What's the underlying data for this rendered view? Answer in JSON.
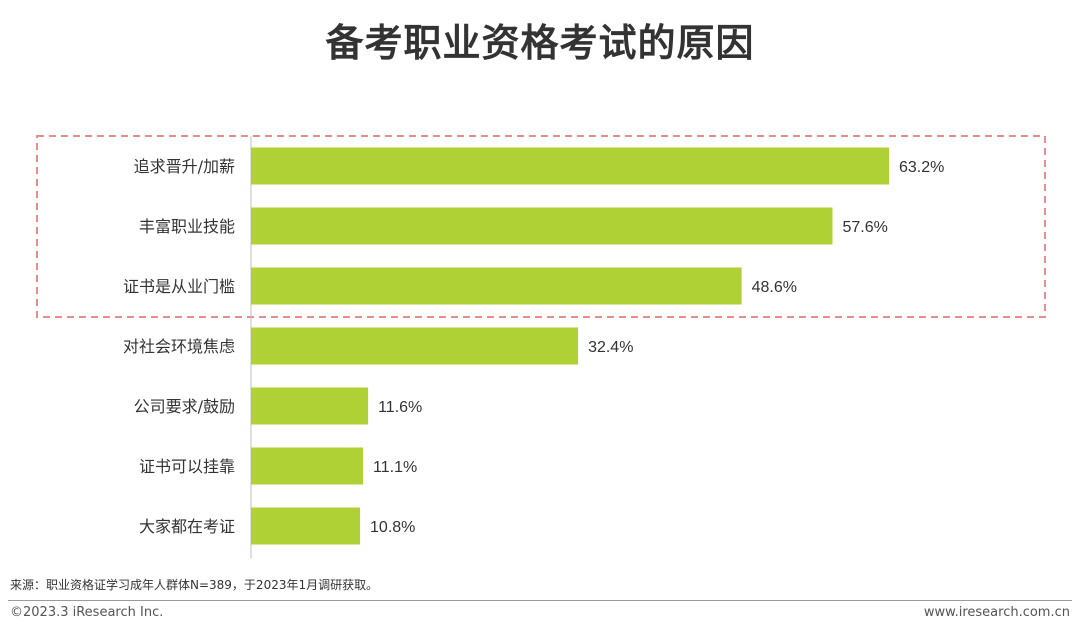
{
  "title": "备考职业资格考试的原因",
  "chart_data": {
    "type": "bar",
    "orientation": "horizontal",
    "categories": [
      "追求晋升/加薪",
      "丰富职业技能",
      "证书是从业门槛",
      "对社会环境焦虑",
      "公司要求/鼓励",
      "证书可以挂靠",
      "大家都在考证"
    ],
    "values": [
      63.2,
      57.6,
      48.6,
      32.4,
      11.6,
      11.1,
      10.8
    ],
    "value_labels": [
      "63.2%",
      "57.6%",
      "48.6%",
      "32.4%",
      "11.6%",
      "11.1%",
      "10.8%"
    ],
    "value_unit": "%",
    "xlim": [
      0,
      63.2
    ],
    "bar_color": "#b0d136",
    "highlight_box_color": "#e88c8c",
    "highlighted_categories": [
      "追求晋升/加薪",
      "丰富职业技能",
      "证书是从业门槛"
    ],
    "grid": false,
    "legend": "none"
  },
  "footer": {
    "source": "来源：职业资格证学习成年人群体N=389，于2023年1月调研获取。",
    "copyright": "©2023.3 iResearch Inc.",
    "website": "www.iresearch.com.cn"
  }
}
